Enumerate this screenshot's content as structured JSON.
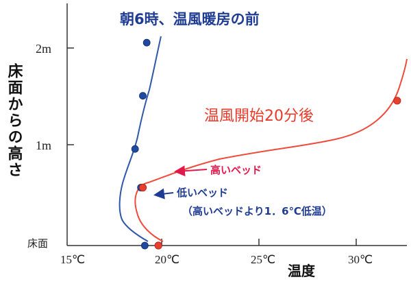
{
  "chart_data": {
    "type": "line",
    "ylabel": "床面からの高さ",
    "xlabel": "温度",
    "x_ticks": [
      "15℃",
      "20℃",
      "25℃",
      "30℃"
    ],
    "y_ticks": [
      "2m",
      "1m"
    ],
    "y_floor_label": "床面",
    "xlim": [
      15,
      32.5
    ],
    "ylim": [
      0,
      2.4
    ],
    "series": [
      {
        "name": "朝6時、温風暖房の前",
        "color": "#2f57a8",
        "points": [
          [
            19.0,
            0.0
          ],
          [
            18.8,
            0.6
          ],
          [
            18.5,
            1.0
          ],
          [
            18.9,
            1.55
          ],
          [
            19.1,
            2.1
          ]
        ]
      },
      {
        "name": "温風開始20分後",
        "color": "#e83a2a",
        "points": [
          [
            19.7,
            0.0
          ],
          [
            18.9,
            0.6
          ],
          [
            32.0,
            1.5
          ]
        ]
      }
    ],
    "annotations": [
      {
        "text": "高いベッド",
        "color": "#e0194a",
        "arrow_to": [
          19.6,
          0.7
        ]
      },
      {
        "text": "低いベッド",
        "color": "#1f3c93",
        "arrow_to": [
          19.2,
          0.48
        ]
      },
      {
        "text": "（高いベッドより1．6℃低温）",
        "color": "#1f3c93"
      }
    ]
  }
}
